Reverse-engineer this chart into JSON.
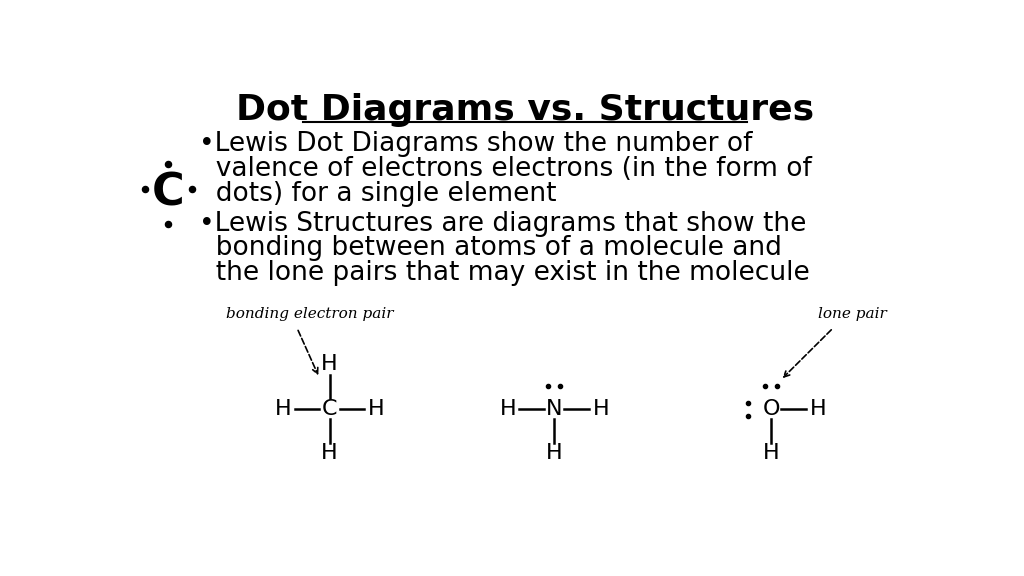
{
  "title": "Dot Diagrams vs. Structures",
  "bg_color": "#ffffff",
  "bullet1_line1": "•Lewis Dot Diagrams show the number of",
  "bullet1_line2": "  valence of electrons electrons (in the form of",
  "bullet1_line3": "  dots) for a single element",
  "bullet2_line1": "•Lewis Structures are diagrams that show the",
  "bullet2_line2": "  bonding between atoms of a molecule and",
  "bullet2_line3": "  the lone pairs that may exist in the molecule",
  "label_bonding": "bonding electron pair",
  "label_lone": "lone pair",
  "text_color": "#000000",
  "title_fontsize": 26,
  "bullet_fontsize": 19,
  "diagram_fontsize": 16,
  "label_fontsize": 11
}
